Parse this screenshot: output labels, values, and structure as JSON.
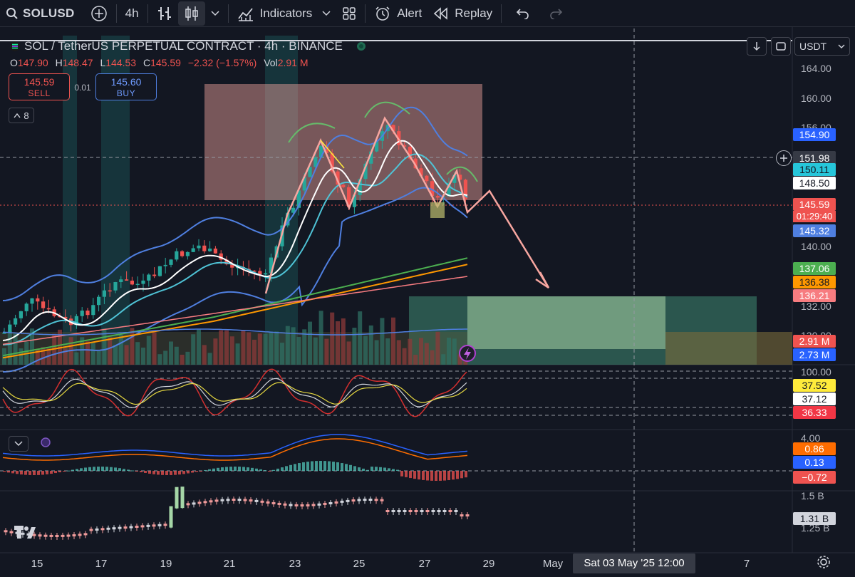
{
  "toolbar": {
    "symbol": "SOLUSD",
    "interval": "4h",
    "indicators_label": "Indicators",
    "alert_label": "Alert",
    "replay_label": "Replay"
  },
  "legend": {
    "title": "SOL / TetherUS PERPETUAL CONTRACT · 4h · BINANCE",
    "open_key": "O",
    "open": "147.90",
    "high_key": "H",
    "high": "148.47",
    "low_key": "L",
    "low": "144.53",
    "close_key": "C",
    "close": "145.59",
    "change": "−2.32 (−1.57%)",
    "vol_key": "Vol",
    "vol": "2.91 M",
    "sell_price": "145.59",
    "sell_label": "SELL",
    "spread": "0.01",
    "buy_price": "145.60",
    "buy_label": "BUY",
    "indicator_count": "8"
  },
  "currency": "USDT",
  "price_axis": {
    "ticks": [
      "164.00",
      "160.00",
      "156.00",
      "140.00",
      "132.00",
      "130.00"
    ],
    "crosshair_price": "151.98",
    "countdown": "01:29:40",
    "rsi_top": "100.00",
    "macd_top": "4.00",
    "vol_top": "1.5 B",
    "vol_bottom": "1.25 B"
  },
  "tags": [
    {
      "id": "bb-upper",
      "value": "154.90",
      "color": "#2962ff",
      "fg": "light"
    },
    {
      "id": "ema-cyan",
      "value": "150.11",
      "color": "#26c6da",
      "fg": "dark"
    },
    {
      "id": "ema-white",
      "value": "148.50",
      "color": "#ffffff",
      "fg": "dark"
    },
    {
      "id": "last-price",
      "value": "145.59",
      "color": "#ef5350",
      "fg": "light"
    },
    {
      "id": "bb-lower",
      "value": "145.32",
      "color": "#4f7fe0",
      "fg": "light"
    },
    {
      "id": "ma-green",
      "value": "137.06",
      "color": "#4caf50",
      "fg": "light"
    },
    {
      "id": "ma-orange",
      "value": "136.38",
      "color": "#ff9800",
      "fg": "dark"
    },
    {
      "id": "ma-salmon",
      "value": "136.21",
      "color": "#f77c80",
      "fg": "light"
    },
    {
      "id": "vol-1",
      "value": "2.91 M",
      "color": "#ef5350",
      "fg": "light"
    },
    {
      "id": "vol-2",
      "value": "2.73 M",
      "color": "#2962ff",
      "fg": "light"
    },
    {
      "id": "rsi-yellow",
      "value": "37.52",
      "color": "#ffeb3b",
      "fg": "dark"
    },
    {
      "id": "rsi-white",
      "value": "37.12",
      "color": "#ffffff",
      "fg": "dark"
    },
    {
      "id": "rsi-red",
      "value": "36.33",
      "color": "#f23645",
      "fg": "light"
    },
    {
      "id": "macd-orange",
      "value": "0.86",
      "color": "#ff6d00",
      "fg": "light"
    },
    {
      "id": "macd-blue",
      "value": "0.13",
      "color": "#2962ff",
      "fg": "light"
    },
    {
      "id": "macd-hist",
      "value": "−0.72",
      "color": "#ef5350",
      "fg": "light"
    },
    {
      "id": "cvd",
      "value": "1.31 B",
      "color": "#d1d4dc",
      "fg": "dark"
    }
  ],
  "time_axis": {
    "labels": [
      "15",
      "17",
      "19",
      "21",
      "23",
      "25",
      "27",
      "29",
      "May",
      "7"
    ],
    "crosshair_time": "Sat 03 May '25   12:00"
  },
  "colors": {
    "background": "#131722",
    "up": "#26a69a",
    "down": "#ef5350"
  },
  "chart_data": {
    "type": "candlestick",
    "interval": "4h",
    "last_price": 145.59,
    "crosshair_price": 151.98,
    "target_arrow": "down",
    "annotations": [
      "head-and-shoulders arcs",
      "resistance zone",
      "projected target zone"
    ]
  }
}
